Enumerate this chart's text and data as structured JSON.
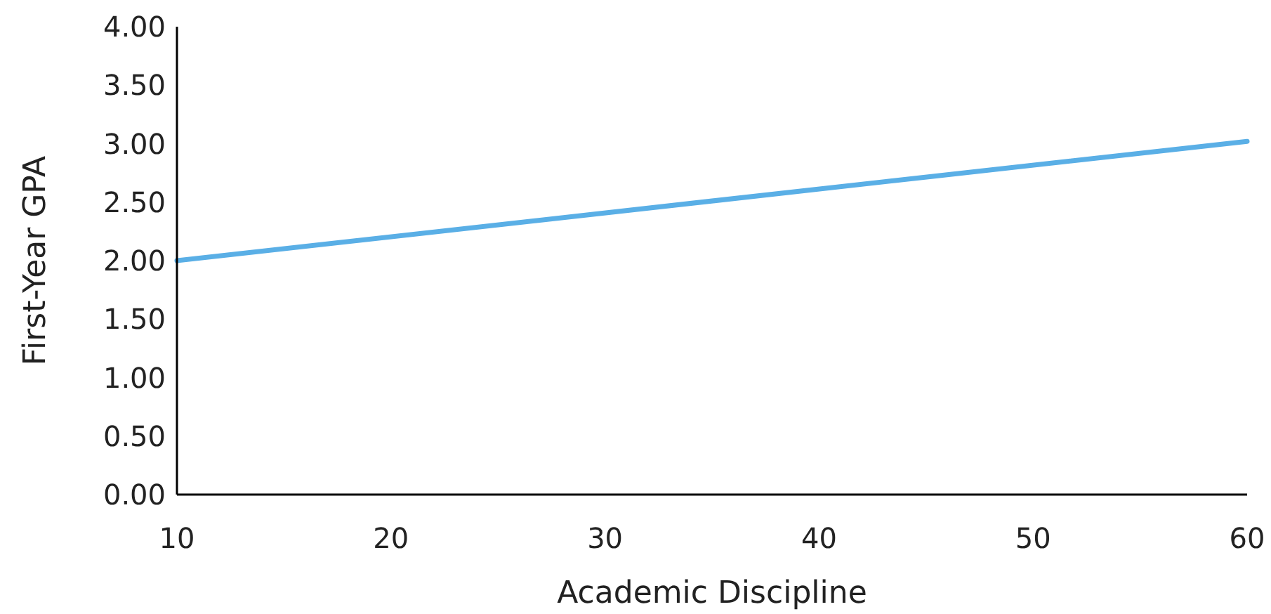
{
  "chart_data": {
    "type": "line",
    "xlabel": "Academic Discipline",
    "ylabel": "First-Year GPA",
    "x": [
      10,
      60
    ],
    "series": [
      {
        "color": "#5aafe6",
        "values": [
          2.0,
          3.02
        ]
      }
    ],
    "xlim": [
      10,
      60
    ],
    "xticks": [
      10,
      20,
      30,
      40,
      50,
      60
    ],
    "ylim": [
      0,
      4
    ],
    "yticks": [
      {
        "value": 0,
        "label": "0.00"
      },
      {
        "value": 0.5,
        "label": "0.50"
      },
      {
        "value": 1,
        "label": "1.00"
      },
      {
        "value": 1.5,
        "label": "1.50"
      },
      {
        "value": 2,
        "label": "2.00"
      },
      {
        "value": 2.5,
        "label": "2.50"
      },
      {
        "value": 3,
        "label": "3.00"
      },
      {
        "value": 3.5,
        "label": "3.50"
      },
      {
        "value": 4,
        "label": "4.00"
      }
    ],
    "grid": false,
    "marker": "none",
    "line_style": "solid"
  }
}
